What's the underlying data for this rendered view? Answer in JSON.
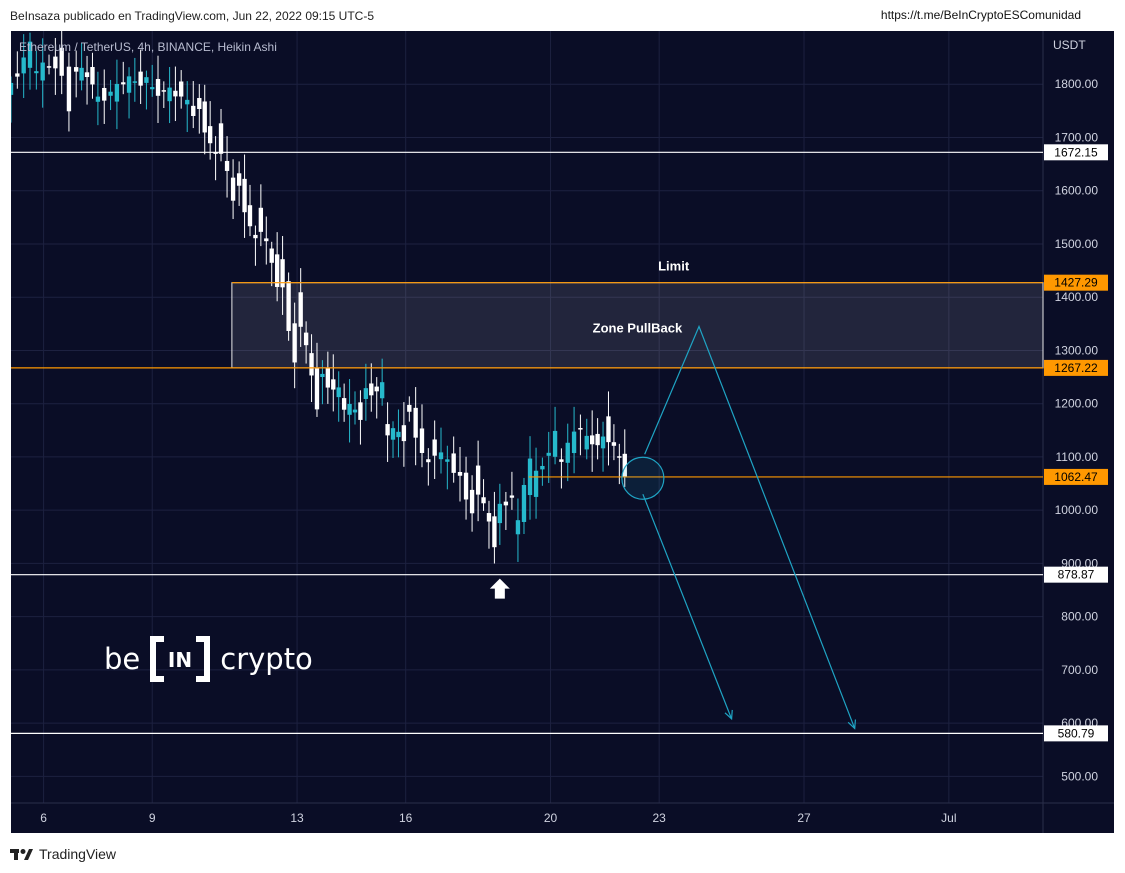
{
  "header": {
    "publisher": "BeInsaza publicado en TradingView.com, Jun 22, 2022 09:15 UTC-5",
    "link": "https://t.me/BeInCryptoESComunidad"
  },
  "footer": {
    "brand": "TradingView"
  },
  "watermark": {
    "left": "be",
    "middle": "IN",
    "right": "crypto"
  },
  "colors": {
    "background": "#0a0d26",
    "candle_up": "#26b9cc",
    "candle_down": "#ffffff",
    "orange_line": "#ff9800",
    "arrow": "#1fa4c4"
  },
  "chart_data": {
    "type": "candlestick",
    "title": "Ethereum / TetherUS, 4h, BINANCE, Heikin Ashi",
    "currency": "USDT",
    "ylim": [
      450,
      1900
    ],
    "y_ticks": [
      "500.00",
      "600.00",
      "700.00",
      "800.00",
      "900.00",
      "1000.00",
      "1100.00",
      "1200.00",
      "1300.00",
      "1400.00",
      "1500.00",
      "1600.00",
      "1700.00",
      "1800.00"
    ],
    "x_ticks": [
      {
        "label": "6",
        "day": 6
      },
      {
        "label": "9",
        "day": 9
      },
      {
        "label": "13",
        "day": 13
      },
      {
        "label": "16",
        "day": 16
      },
      {
        "label": "20",
        "day": 20
      },
      {
        "label": "23",
        "day": 23
      },
      {
        "label": "27",
        "day": 27
      },
      {
        "label": "Jul",
        "day": 31
      }
    ],
    "x_range_days": [
      5.1,
      33.6
    ],
    "levels": [
      {
        "value": 1672.15,
        "label": "1672.15",
        "color": "white",
        "style": "solid"
      },
      {
        "value": 1427.29,
        "label": "1427.29",
        "color": "orange",
        "style": "partial"
      },
      {
        "value": 1267.22,
        "label": "1267.22",
        "color": "orange",
        "style": "solid"
      },
      {
        "value": 1062.47,
        "label": "1062.47",
        "color": "orange",
        "style": "partial"
      },
      {
        "value": 878.87,
        "label": "878.87",
        "color": "white",
        "style": "solid"
      },
      {
        "value": 580.79,
        "label": "580.79",
        "color": "white",
        "style": "solid"
      }
    ],
    "zone": {
      "label": "Zone PullBack",
      "top": 1427.29,
      "bottom": 1267.22,
      "start_day": 11.2
    },
    "annotations": [
      {
        "text": "Limit",
        "day": 23.4,
        "value": 1450
      }
    ],
    "circle": {
      "day": 22.55,
      "value": 1060
    },
    "up_arrow": {
      "day": 18.6,
      "value": 878.87
    },
    "paths": [
      {
        "name": "pullback-path",
        "points": [
          [
            22.6,
            1105
          ],
          [
            24.1,
            1345
          ],
          [
            28.4,
            590
          ]
        ]
      },
      {
        "name": "direct-drop-path",
        "points": [
          [
            22.55,
            1030
          ],
          [
            25.0,
            608
          ]
        ]
      }
    ],
    "candles_key": [
      {
        "day": 5.1,
        "open": 1780,
        "close": 1810
      },
      {
        "day": 5.8,
        "open": 1820,
        "close": 1870
      },
      {
        "day": 6.5,
        "open": 1870,
        "close": 1840
      },
      {
        "day": 6.9,
        "open": 1830,
        "close": 1760
      },
      {
        "day": 7.5,
        "open": 1770,
        "close": 1810
      },
      {
        "day": 8.2,
        "open": 1800,
        "close": 1790
      },
      {
        "day": 9.0,
        "open": 1795,
        "close": 1810
      },
      {
        "day": 9.8,
        "open": 1800,
        "close": 1780
      },
      {
        "day": 10.3,
        "open": 1780,
        "close": 1740
      },
      {
        "day": 10.9,
        "open": 1720,
        "close": 1660
      },
      {
        "day": 11.4,
        "open": 1640,
        "close": 1580
      },
      {
        "day": 12.0,
        "open": 1560,
        "close": 1500
      },
      {
        "day": 12.6,
        "open": 1480,
        "close": 1430
      },
      {
        "day": 13.1,
        "open": 1400,
        "close": 1280
      },
      {
        "day": 13.7,
        "open": 1260,
        "close": 1200
      },
      {
        "day": 14.3,
        "open": 1200,
        "close": 1220
      },
      {
        "day": 14.9,
        "open": 1220,
        "close": 1180
      },
      {
        "day": 15.5,
        "open": 1150,
        "close": 1230
      },
      {
        "day": 16.1,
        "open": 1210,
        "close": 1140
      },
      {
        "day": 16.8,
        "open": 1120,
        "close": 1080
      },
      {
        "day": 17.5,
        "open": 1085,
        "close": 1080
      },
      {
        "day": 18.0,
        "open": 1070,
        "close": 1000
      },
      {
        "day": 18.6,
        "open": 990,
        "close": 940
      },
      {
        "day": 19.1,
        "open": 940,
        "close": 1030
      },
      {
        "day": 19.6,
        "open": 1040,
        "close": 1090
      },
      {
        "day": 20.3,
        "open": 1080,
        "close": 1140
      },
      {
        "day": 21.0,
        "open": 1130,
        "close": 1160
      },
      {
        "day": 21.6,
        "open": 1160,
        "close": 1130
      },
      {
        "day": 22.2,
        "open": 1110,
        "close": 1070
      }
    ]
  }
}
